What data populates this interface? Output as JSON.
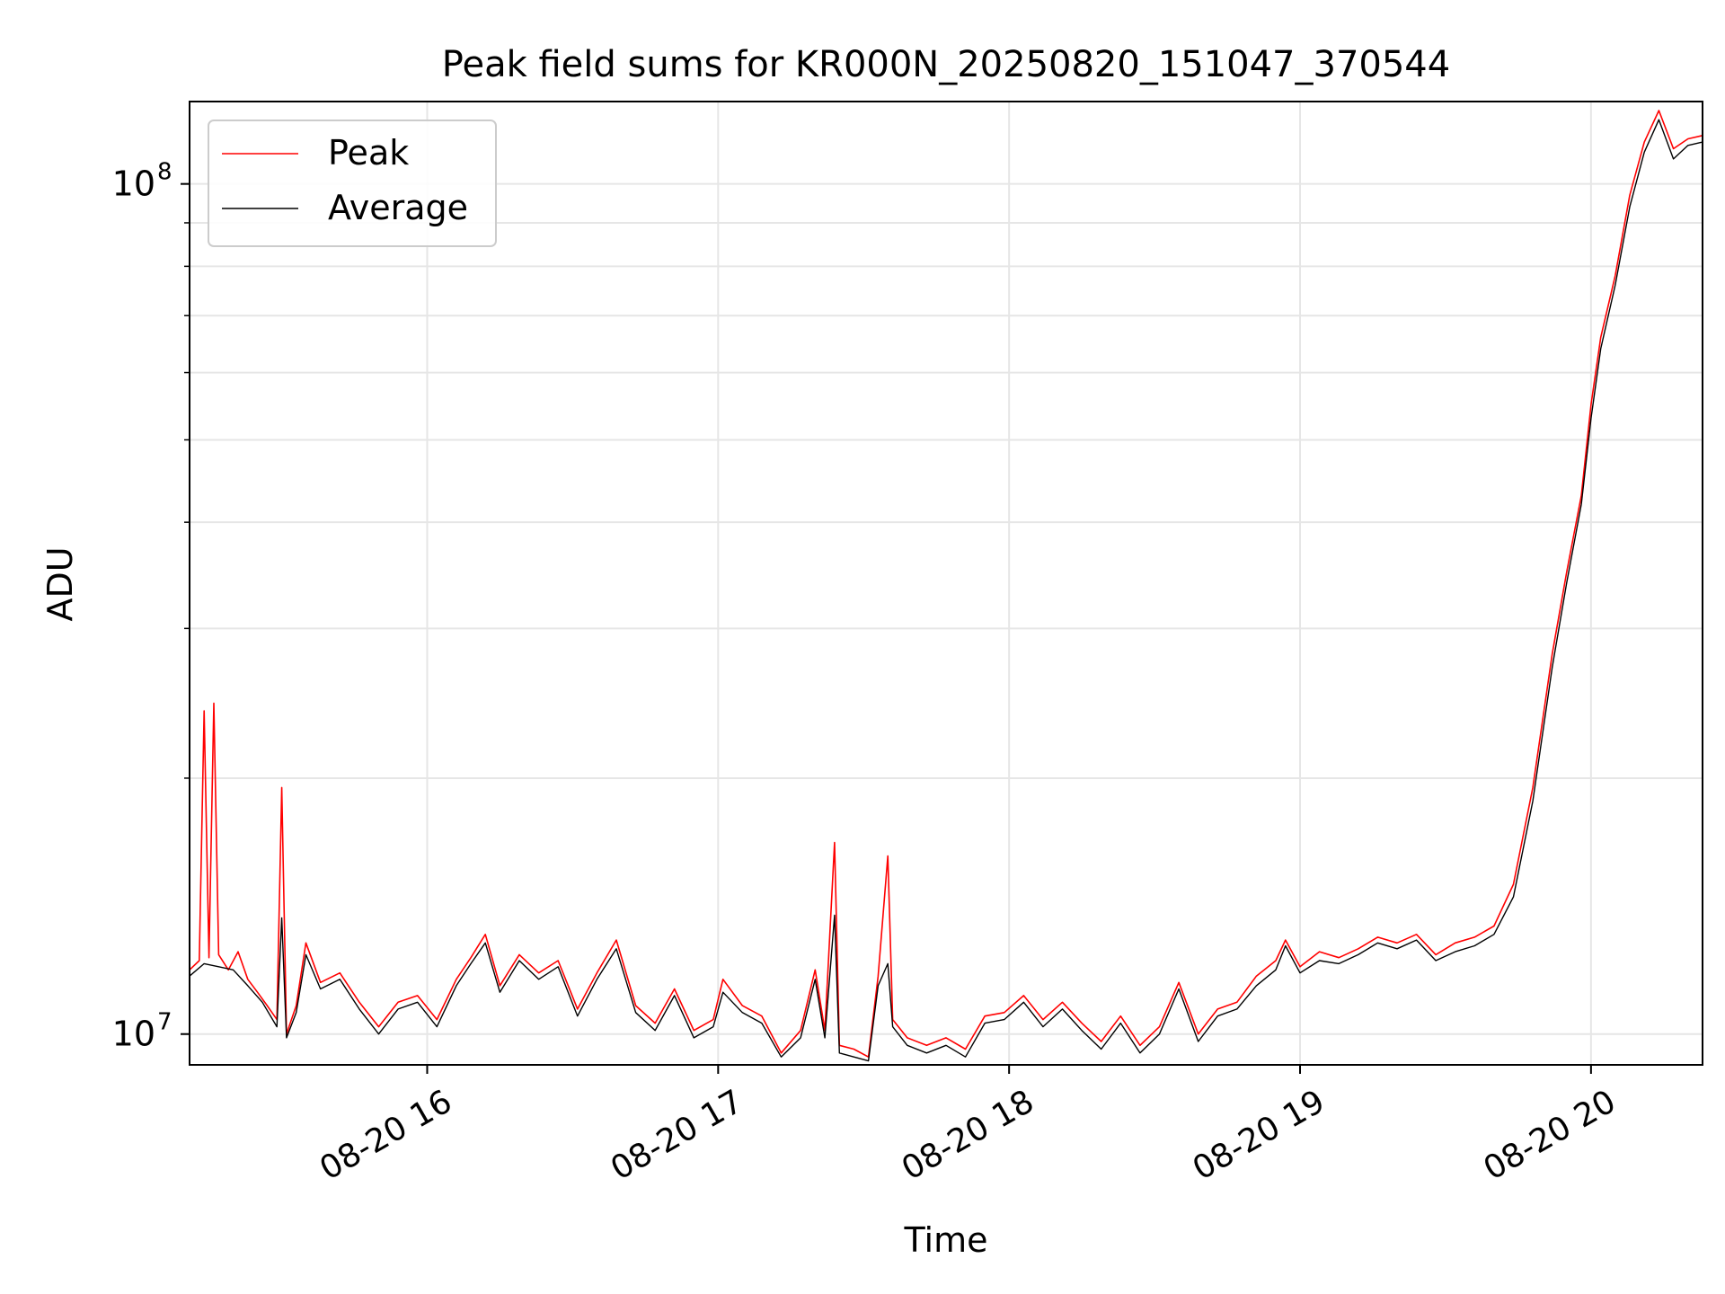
{
  "chart_data": {
    "type": "line",
    "title": "Peak field sums for KR000N_20250820_151047_370544",
    "xlabel": "Time",
    "ylabel": "ADU",
    "y_scale": "log",
    "ylim": [
      9200000,
      125000000
    ],
    "xlim": [
      "2025-08-20 15:11",
      "2025-08-20 20:23"
    ],
    "grid": true,
    "legend_position": "upper-left",
    "x_ticks": [
      {
        "t": "2025-08-20 16:00",
        "label": "08-20 16"
      },
      {
        "t": "2025-08-20 17:00",
        "label": "08-20 17"
      },
      {
        "t": "2025-08-20 18:00",
        "label": "08-20 18"
      },
      {
        "t": "2025-08-20 19:00",
        "label": "08-20 19"
      },
      {
        "t": "2025-08-20 20:00",
        "label": "08-20 20"
      }
    ],
    "y_ticks": [
      {
        "value": 10000000,
        "label_base": "10",
        "label_exp": "7"
      },
      {
        "value": 100000000,
        "label_base": "10",
        "label_exp": "8"
      }
    ],
    "series": [
      {
        "name": "Peak",
        "color": "#ff0000",
        "points": [
          [
            "2025-08-20 15:11",
            11900000
          ],
          [
            "2025-08-20 15:13",
            12200000
          ],
          [
            "2025-08-20 15:14",
            24000000
          ],
          [
            "2025-08-20 15:15",
            12300000
          ],
          [
            "2025-08-20 15:16",
            24500000
          ],
          [
            "2025-08-20 15:17",
            12400000
          ],
          [
            "2025-08-20 15:19",
            11900000
          ],
          [
            "2025-08-20 15:21",
            12500000
          ],
          [
            "2025-08-20 15:23",
            11600000
          ],
          [
            "2025-08-20 15:25",
            11200000
          ],
          [
            "2025-08-20 15:27",
            10800000
          ],
          [
            "2025-08-20 15:29",
            10400000
          ],
          [
            "2025-08-20 15:30",
            19500000
          ],
          [
            "2025-08-20 15:31",
            10000000
          ],
          [
            "2025-08-20 15:33",
            10800000
          ],
          [
            "2025-08-20 15:35",
            12800000
          ],
          [
            "2025-08-20 15:38",
            11500000
          ],
          [
            "2025-08-20 15:42",
            11800000
          ],
          [
            "2025-08-20 15:46",
            10900000
          ],
          [
            "2025-08-20 15:50",
            10200000
          ],
          [
            "2025-08-20 15:54",
            10900000
          ],
          [
            "2025-08-20 15:58",
            11100000
          ],
          [
            "2025-08-20 16:02",
            10400000
          ],
          [
            "2025-08-20 16:06",
            11600000
          ],
          [
            "2025-08-20 16:09",
            12300000
          ],
          [
            "2025-08-20 16:12",
            13100000
          ],
          [
            "2025-08-20 16:15",
            11400000
          ],
          [
            "2025-08-20 16:19",
            12400000
          ],
          [
            "2025-08-20 16:23",
            11800000
          ],
          [
            "2025-08-20 16:27",
            12200000
          ],
          [
            "2025-08-20 16:31",
            10700000
          ],
          [
            "2025-08-20 16:35",
            11800000
          ],
          [
            "2025-08-20 16:39",
            12900000
          ],
          [
            "2025-08-20 16:43",
            10800000
          ],
          [
            "2025-08-20 16:47",
            10300000
          ],
          [
            "2025-08-20 16:51",
            11300000
          ],
          [
            "2025-08-20 16:55",
            10100000
          ],
          [
            "2025-08-20 16:59",
            10400000
          ],
          [
            "2025-08-20 17:01",
            11600000
          ],
          [
            "2025-08-20 17:05",
            10800000
          ],
          [
            "2025-08-20 17:09",
            10500000
          ],
          [
            "2025-08-20 17:13",
            9500000
          ],
          [
            "2025-08-20 17:17",
            10100000
          ],
          [
            "2025-08-20 17:20",
            11900000
          ],
          [
            "2025-08-20 17:22",
            10100000
          ],
          [
            "2025-08-20 17:24",
            16800000
          ],
          [
            "2025-08-20 17:25",
            9700000
          ],
          [
            "2025-08-20 17:28",
            9600000
          ],
          [
            "2025-08-20 17:31",
            9400000
          ],
          [
            "2025-08-20 17:33",
            11700000
          ],
          [
            "2025-08-20 17:35",
            16200000
          ],
          [
            "2025-08-20 17:36",
            10400000
          ],
          [
            "2025-08-20 17:39",
            9900000
          ],
          [
            "2025-08-20 17:43",
            9700000
          ],
          [
            "2025-08-20 17:47",
            9900000
          ],
          [
            "2025-08-20 17:51",
            9600000
          ],
          [
            "2025-08-20 17:55",
            10500000
          ],
          [
            "2025-08-20 17:59",
            10600000
          ],
          [
            "2025-08-20 18:03",
            11100000
          ],
          [
            "2025-08-20 18:07",
            10400000
          ],
          [
            "2025-08-20 18:11",
            10900000
          ],
          [
            "2025-08-20 18:15",
            10300000
          ],
          [
            "2025-08-20 18:19",
            9800000
          ],
          [
            "2025-08-20 18:23",
            10500000
          ],
          [
            "2025-08-20 18:27",
            9700000
          ],
          [
            "2025-08-20 18:31",
            10200000
          ],
          [
            "2025-08-20 18:35",
            11500000
          ],
          [
            "2025-08-20 18:39",
            10000000
          ],
          [
            "2025-08-20 18:43",
            10700000
          ],
          [
            "2025-08-20 18:47",
            10900000
          ],
          [
            "2025-08-20 18:51",
            11700000
          ],
          [
            "2025-08-20 18:55",
            12200000
          ],
          [
            "2025-08-20 18:57",
            12900000
          ],
          [
            "2025-08-20 19:00",
            12000000
          ],
          [
            "2025-08-20 19:04",
            12500000
          ],
          [
            "2025-08-20 19:08",
            12300000
          ],
          [
            "2025-08-20 19:12",
            12600000
          ],
          [
            "2025-08-20 19:16",
            13000000
          ],
          [
            "2025-08-20 19:20",
            12800000
          ],
          [
            "2025-08-20 19:24",
            13100000
          ],
          [
            "2025-08-20 19:28",
            12400000
          ],
          [
            "2025-08-20 19:32",
            12800000
          ],
          [
            "2025-08-20 19:36",
            13000000
          ],
          [
            "2025-08-20 19:40",
            13400000
          ],
          [
            "2025-08-20 19:44",
            15000000
          ],
          [
            "2025-08-20 19:48",
            19500000
          ],
          [
            "2025-08-20 19:52",
            28000000
          ],
          [
            "2025-08-20 19:55",
            35000000
          ],
          [
            "2025-08-20 19:58",
            43000000
          ],
          [
            "2025-08-20 20:00",
            55000000
          ],
          [
            "2025-08-20 20:02",
            66000000
          ],
          [
            "2025-08-20 20:05",
            78000000
          ],
          [
            "2025-08-20 20:08",
            97000000
          ],
          [
            "2025-08-20 20:11",
            112000000
          ],
          [
            "2025-08-20 20:14",
            122000000
          ],
          [
            "2025-08-20 20:17",
            110000000
          ],
          [
            "2025-08-20 20:20",
            113000000
          ],
          [
            "2025-08-20 20:23",
            114000000
          ]
        ]
      },
      {
        "name": "Average",
        "color": "#000000",
        "points": [
          [
            "2025-08-20 15:11",
            11700000
          ],
          [
            "2025-08-20 15:14",
            12100000
          ],
          [
            "2025-08-20 15:17",
            12000000
          ],
          [
            "2025-08-20 15:20",
            11900000
          ],
          [
            "2025-08-20 15:23",
            11400000
          ],
          [
            "2025-08-20 15:26",
            10900000
          ],
          [
            "2025-08-20 15:29",
            10200000
          ],
          [
            "2025-08-20 15:30",
            13700000
          ],
          [
            "2025-08-20 15:31",
            9900000
          ],
          [
            "2025-08-20 15:33",
            10600000
          ],
          [
            "2025-08-20 15:35",
            12400000
          ],
          [
            "2025-08-20 15:38",
            11300000
          ],
          [
            "2025-08-20 15:42",
            11600000
          ],
          [
            "2025-08-20 15:46",
            10700000
          ],
          [
            "2025-08-20 15:50",
            10000000
          ],
          [
            "2025-08-20 15:54",
            10700000
          ],
          [
            "2025-08-20 15:58",
            10900000
          ],
          [
            "2025-08-20 16:02",
            10200000
          ],
          [
            "2025-08-20 16:06",
            11400000
          ],
          [
            "2025-08-20 16:09",
            12100000
          ],
          [
            "2025-08-20 16:12",
            12800000
          ],
          [
            "2025-08-20 16:15",
            11200000
          ],
          [
            "2025-08-20 16:19",
            12200000
          ],
          [
            "2025-08-20 16:23",
            11600000
          ],
          [
            "2025-08-20 16:27",
            12000000
          ],
          [
            "2025-08-20 16:31",
            10500000
          ],
          [
            "2025-08-20 16:35",
            11600000
          ],
          [
            "2025-08-20 16:39",
            12600000
          ],
          [
            "2025-08-20 16:43",
            10600000
          ],
          [
            "2025-08-20 16:47",
            10100000
          ],
          [
            "2025-08-20 16:51",
            11100000
          ],
          [
            "2025-08-20 16:55",
            9900000
          ],
          [
            "2025-08-20 16:59",
            10200000
          ],
          [
            "2025-08-20 17:01",
            11200000
          ],
          [
            "2025-08-20 17:05",
            10600000
          ],
          [
            "2025-08-20 17:09",
            10300000
          ],
          [
            "2025-08-20 17:13",
            9400000
          ],
          [
            "2025-08-20 17:17",
            9900000
          ],
          [
            "2025-08-20 17:20",
            11600000
          ],
          [
            "2025-08-20 17:22",
            9900000
          ],
          [
            "2025-08-20 17:24",
            13800000
          ],
          [
            "2025-08-20 17:25",
            9500000
          ],
          [
            "2025-08-20 17:28",
            9400000
          ],
          [
            "2025-08-20 17:31",
            9300000
          ],
          [
            "2025-08-20 17:33",
            11400000
          ],
          [
            "2025-08-20 17:35",
            12100000
          ],
          [
            "2025-08-20 17:36",
            10200000
          ],
          [
            "2025-08-20 17:39",
            9700000
          ],
          [
            "2025-08-20 17:43",
            9500000
          ],
          [
            "2025-08-20 17:47",
            9700000
          ],
          [
            "2025-08-20 17:51",
            9400000
          ],
          [
            "2025-08-20 17:55",
            10300000
          ],
          [
            "2025-08-20 17:59",
            10400000
          ],
          [
            "2025-08-20 18:03",
            10900000
          ],
          [
            "2025-08-20 18:07",
            10200000
          ],
          [
            "2025-08-20 18:11",
            10700000
          ],
          [
            "2025-08-20 18:15",
            10100000
          ],
          [
            "2025-08-20 18:19",
            9600000
          ],
          [
            "2025-08-20 18:23",
            10300000
          ],
          [
            "2025-08-20 18:27",
            9500000
          ],
          [
            "2025-08-20 18:31",
            10000000
          ],
          [
            "2025-08-20 18:35",
            11300000
          ],
          [
            "2025-08-20 18:39",
            9800000
          ],
          [
            "2025-08-20 18:43",
            10500000
          ],
          [
            "2025-08-20 18:47",
            10700000
          ],
          [
            "2025-08-20 18:51",
            11400000
          ],
          [
            "2025-08-20 18:55",
            11900000
          ],
          [
            "2025-08-20 18:57",
            12700000
          ],
          [
            "2025-08-20 19:00",
            11800000
          ],
          [
            "2025-08-20 19:04",
            12200000
          ],
          [
            "2025-08-20 19:08",
            12100000
          ],
          [
            "2025-08-20 19:12",
            12400000
          ],
          [
            "2025-08-20 19:16",
            12800000
          ],
          [
            "2025-08-20 19:20",
            12600000
          ],
          [
            "2025-08-20 19:24",
            12900000
          ],
          [
            "2025-08-20 19:28",
            12200000
          ],
          [
            "2025-08-20 19:32",
            12500000
          ],
          [
            "2025-08-20 19:36",
            12700000
          ],
          [
            "2025-08-20 19:40",
            13100000
          ],
          [
            "2025-08-20 19:44",
            14500000
          ],
          [
            "2025-08-20 19:48",
            18800000
          ],
          [
            "2025-08-20 19:52",
            27000000
          ],
          [
            "2025-08-20 19:55",
            34000000
          ],
          [
            "2025-08-20 19:58",
            42000000
          ],
          [
            "2025-08-20 20:00",
            53000000
          ],
          [
            "2025-08-20 20:02",
            64000000
          ],
          [
            "2025-08-20 20:05",
            76000000
          ],
          [
            "2025-08-20 20:08",
            94000000
          ],
          [
            "2025-08-20 20:11",
            109000000
          ],
          [
            "2025-08-20 20:14",
            119000000
          ],
          [
            "2025-08-20 20:17",
            107000000
          ],
          [
            "2025-08-20 20:20",
            111000000
          ],
          [
            "2025-08-20 20:23",
            112000000
          ]
        ]
      }
    ]
  }
}
